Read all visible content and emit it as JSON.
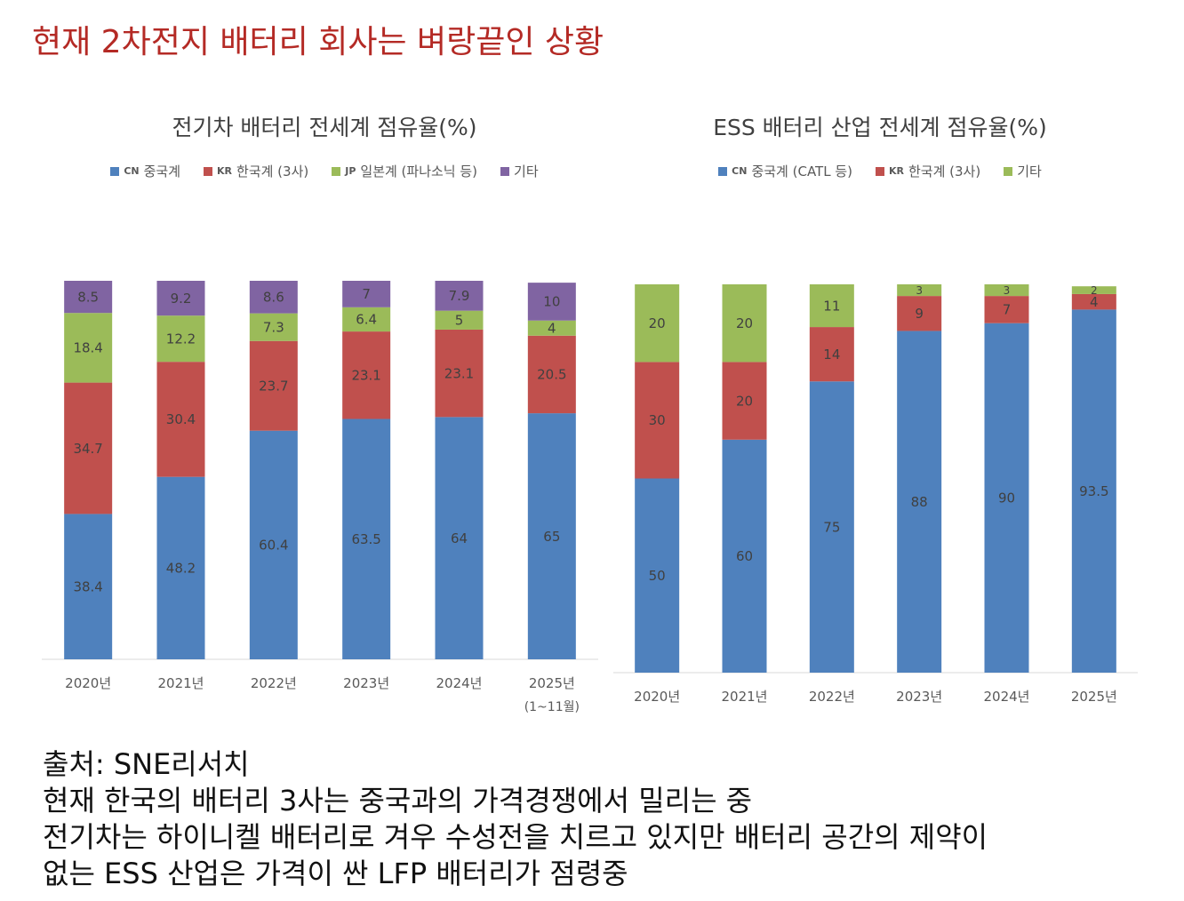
{
  "headline": "현재 2차전지 배터리 회사는 벼랑끝인 상황",
  "chart_data": [
    {
      "type": "bar",
      "stacked": true,
      "title": "전기차 배터리 전세계 점유율(%)",
      "categories": [
        "2020년",
        "2021년",
        "2022년",
        "2023년",
        "2024년",
        "2025년"
      ],
      "category_notes": [
        "",
        "",
        "",
        "",
        "",
        "(1~11월)"
      ],
      "legend_position": "top",
      "grid": false,
      "ylim": [
        0,
        100
      ],
      "series": [
        {
          "name": "중국계",
          "flag": "CN",
          "color": "#4f81bd",
          "values": [
            38.4,
            48.2,
            60.4,
            63.5,
            64,
            65
          ]
        },
        {
          "name": "한국계 (3사)",
          "flag": "KR",
          "color": "#c0504d",
          "values": [
            34.7,
            30.4,
            23.7,
            23.1,
            23.1,
            20.5
          ]
        },
        {
          "name": "일본계 (파나소닉 등)",
          "flag": "JP",
          "color": "#9bbb59",
          "values": [
            18.4,
            12.2,
            7.3,
            6.4,
            5,
            4
          ]
        },
        {
          "name": "기타",
          "flag": "",
          "color": "#8064a2",
          "values": [
            8.5,
            9.2,
            8.6,
            7,
            7.9,
            10
          ]
        }
      ]
    },
    {
      "type": "bar",
      "stacked": true,
      "title": "ESS 배터리 산업 전세계 점유율(%)",
      "categories": [
        "2020년",
        "2021년",
        "2022년",
        "2023년",
        "2024년",
        "2025년"
      ],
      "category_notes": [
        "",
        "",
        "",
        "",
        "",
        ""
      ],
      "legend_position": "top",
      "grid": false,
      "ylim": [
        0,
        100
      ],
      "series": [
        {
          "name": "중국계 (CATL 등)",
          "flag": "CN",
          "color": "#4f81bd",
          "values": [
            50,
            60,
            75,
            88,
            90,
            93.5
          ]
        },
        {
          "name": "한국계 (3사)",
          "flag": "KR",
          "color": "#c0504d",
          "values": [
            30,
            20,
            14,
            9,
            7,
            4
          ]
        },
        {
          "name": "기타",
          "flag": "",
          "color": "#9bbb59",
          "values": [
            20,
            20,
            11,
            3,
            3,
            2
          ]
        }
      ]
    }
  ],
  "notes": [
    "출처: SNE리서치",
    "현재 한국의 배터리 3사는 중국과의 가격경쟁에서 밀리는 중",
    "전기차는 하이니켈 배터리로 겨우 수성전을 치르고 있지만 배터리 공간의 제약이",
    "없는 ESS 산업은 가격이 싼 LFP 배터리가 점령중"
  ]
}
